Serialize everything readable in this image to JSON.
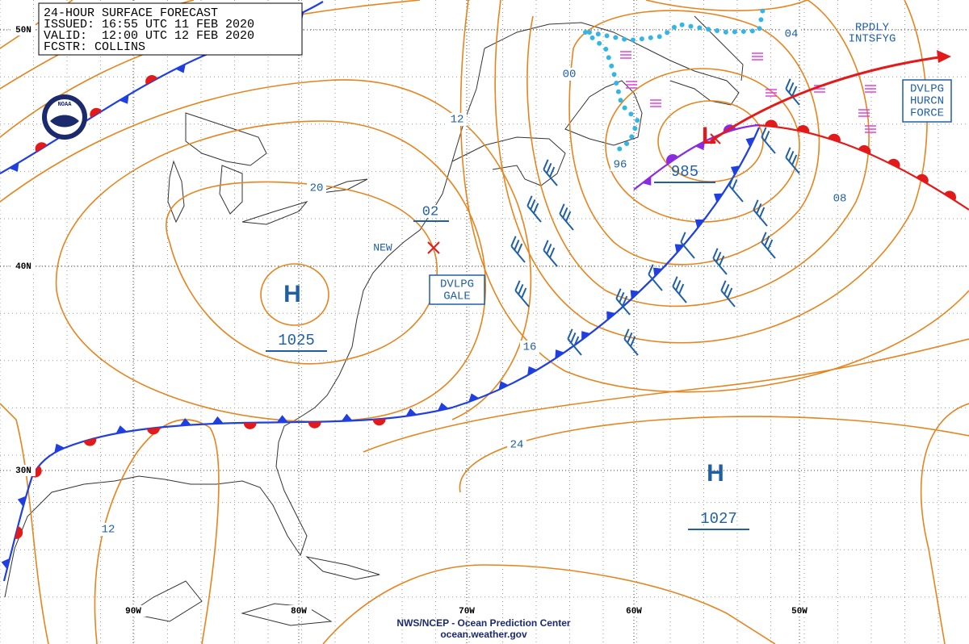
{
  "header": {
    "lines": [
      "24-HOUR SURFACE FORECAST",
      "ISSUED: 16:55 UTC 11 FEB 2020",
      "VALID:  12:00 UTC 12 FEB 2020",
      "FCSTR: COLLINS"
    ]
  },
  "logo": "NOAA",
  "latitude_labels": [
    "50N",
    "40N",
    "30N"
  ],
  "longitude_labels": [
    "90W",
    "80W",
    "70W",
    "60W",
    "50W"
  ],
  "isobar_labels": [
    "04",
    "00",
    "12",
    "96",
    "20",
    "02",
    "08",
    "16",
    "24",
    "12"
  ],
  "pressure_systems": [
    {
      "symbol": "H",
      "pressure": "1025"
    },
    {
      "symbol": "H",
      "pressure": "1027"
    },
    {
      "symbol": "L",
      "pressure": "985"
    }
  ],
  "annotations": {
    "rapid": [
      "RPDLY",
      "INTSFYG"
    ],
    "hurricane": [
      "DVLPG",
      "HURCN",
      "FORCE"
    ],
    "gale": [
      "DVLPG",
      "GALE"
    ],
    "new": "NEW"
  },
  "footer": {
    "center": "NWS/NCEP - Ocean Prediction Center",
    "site": "ocean.weather.gov"
  }
}
